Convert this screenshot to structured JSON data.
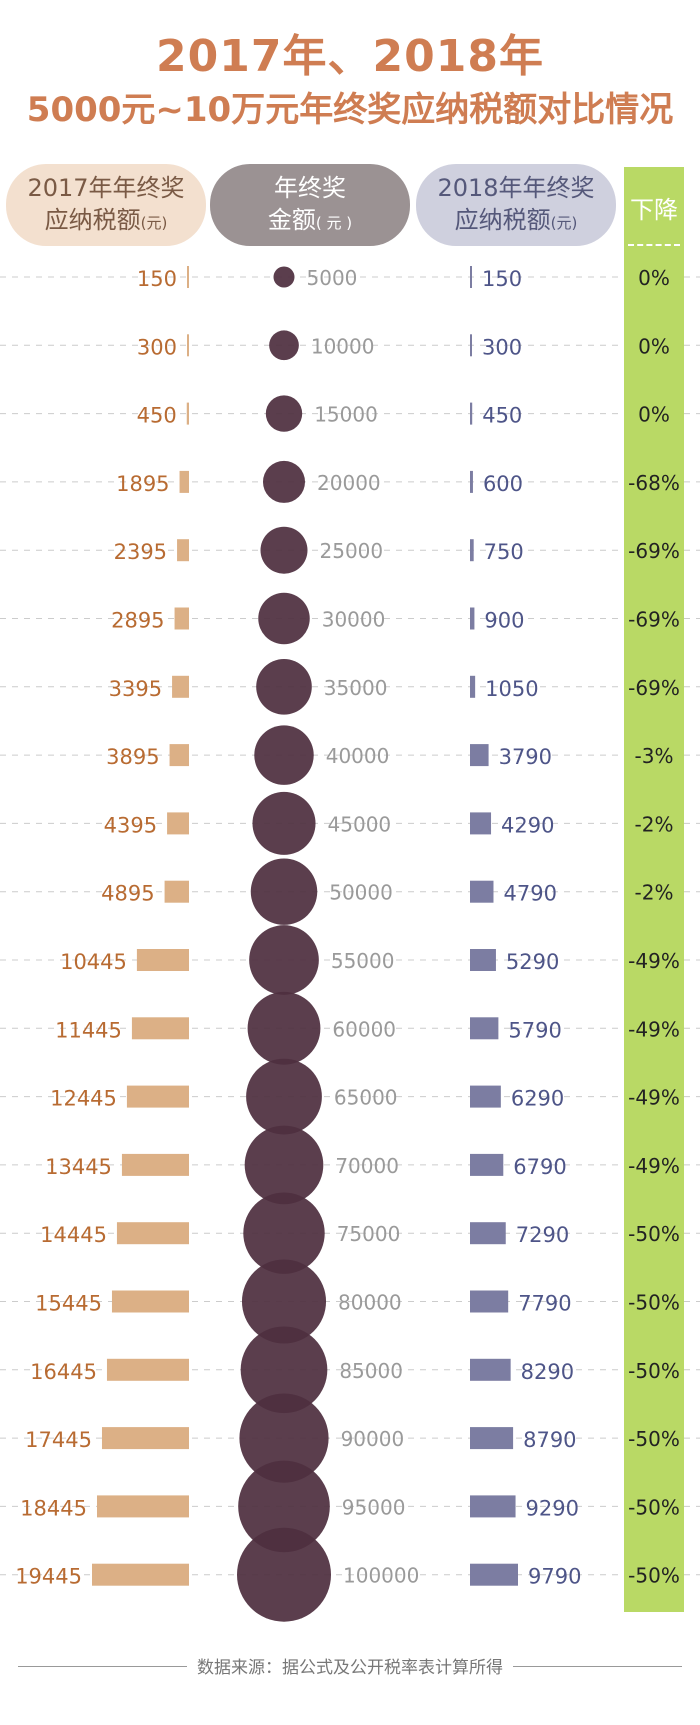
{
  "title_line1": "2017年、2018年",
  "title_line2": "5000元~10万元年终奖应纳税额对比情况",
  "headers": {
    "tax2017_line1": "2017年年终奖",
    "tax2017_line2": "应纳税额",
    "tax2017_unit": "(元)",
    "bonus_line1": "年终奖",
    "bonus_line2": "金额",
    "bonus_unit": "( 元 )",
    "tax2018_line1": "2018年年终奖",
    "tax2018_line2": "应纳税额",
    "tax2018_unit": "(元)",
    "decline": "下降"
  },
  "source": "数据来源：据公式及公开税率表计算所得",
  "colors": {
    "tax2017_bar": "#dcb086",
    "tax2017_text": "#b86b32",
    "bubble": "#4f2f40",
    "bonus_text": "#9a9a9a",
    "tax2018_bar": "#7c7da2",
    "tax2018_text": "#4e5588",
    "decline_bg": "#b9d965"
  },
  "chart_data": {
    "type": "table",
    "categories": [
      "5000",
      "10000",
      "15000",
      "20000",
      "25000",
      "30000",
      "35000",
      "40000",
      "45000",
      "50000",
      "55000",
      "60000",
      "65000",
      "70000",
      "75000",
      "80000",
      "85000",
      "90000",
      "95000",
      "100000"
    ],
    "bonus": [
      5000,
      10000,
      15000,
      20000,
      25000,
      30000,
      35000,
      40000,
      45000,
      50000,
      55000,
      60000,
      65000,
      70000,
      75000,
      80000,
      85000,
      90000,
      95000,
      100000
    ],
    "tax2017": [
      150,
      300,
      450,
      1895,
      2395,
      2895,
      3395,
      3895,
      4395,
      4895,
      10445,
      11445,
      12445,
      13445,
      14445,
      15445,
      16445,
      17445,
      18445,
      19445
    ],
    "tax2018": [
      150,
      300,
      450,
      600,
      750,
      900,
      1050,
      3790,
      4290,
      4790,
      5290,
      5790,
      6290,
      6790,
      7290,
      7790,
      8290,
      8790,
      9290,
      9790
    ],
    "decline": [
      "0%",
      "0%",
      "0%",
      "-68%",
      "-69%",
      "-69%",
      "-69%",
      "-3%",
      "-2%",
      "-2%",
      "-49%",
      "-49%",
      "-49%",
      "-49%",
      "-50%",
      "-50%",
      "-50%",
      "-50%",
      "-50%",
      "-50%"
    ]
  }
}
